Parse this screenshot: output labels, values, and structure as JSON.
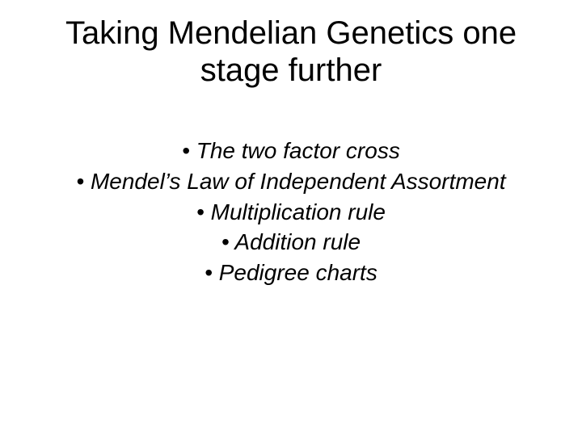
{
  "title_fontsize": 40,
  "bullet_fontsize": 28,
  "background_color": "#ffffff",
  "text_color": "#000000",
  "title_line1": "Taking Mendelian Genetics one",
  "title_line2": "stage further",
  "bullets": {
    "b1": "•  The two factor cross",
    "b2": "•  Mendel’s Law of Independent Assortment",
    "b3": "•  Multiplication rule",
    "b4": "•  Addition rule",
    "b5": "•  Pedigree charts"
  }
}
